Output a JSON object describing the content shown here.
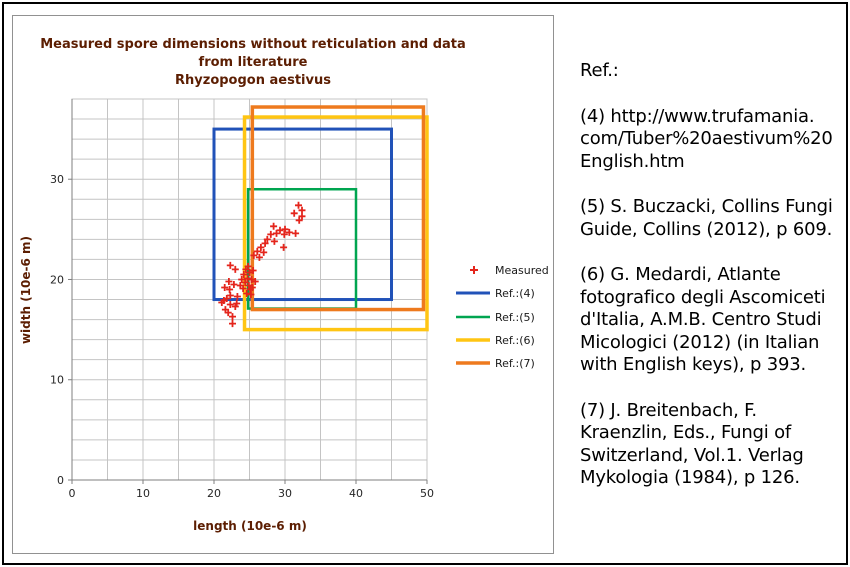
{
  "chart_data": {
    "type": "scatter",
    "title_lines": [
      "Measured spore dimensions without reticulation and data",
      "from literature",
      "Rhyzopogon aestivus"
    ],
    "title_color": "#5c1e02",
    "xlabel": "length (10e-6 m)",
    "ylabel": "width (10e-6 m)",
    "xlim": [
      0,
      50
    ],
    "ylim": [
      0,
      38
    ],
    "x_ticks": [
      0,
      10,
      20,
      30,
      40,
      50
    ],
    "y_ticks": [
      0,
      10,
      20,
      30
    ],
    "x_grid_step": 5,
    "y_grid_step": 2,
    "grid_color": "#c4c4c4",
    "axis_color": "#7f7f7f",
    "legend_position": "right",
    "series": [
      {
        "name": "Measured",
        "kind": "scatter",
        "marker": "plus",
        "color": "#e4251c",
        "points": [
          [
            21.1,
            17.7
          ],
          [
            21.4,
            17.9
          ],
          [
            21.6,
            17.0
          ],
          [
            21.8,
            18.1
          ],
          [
            22.0,
            16.7
          ],
          [
            22.3,
            17.5
          ],
          [
            22.6,
            15.6
          ],
          [
            22.6,
            16.3
          ],
          [
            23.0,
            17.3
          ],
          [
            23.2,
            17.6
          ],
          [
            21.5,
            19.2
          ],
          [
            22.1,
            19.8
          ],
          [
            22.2,
            19.0
          ],
          [
            22.8,
            19.5
          ],
          [
            22.3,
            18.4
          ],
          [
            23.3,
            18.3
          ],
          [
            22.3,
            21.4
          ],
          [
            23.0,
            21.0
          ],
          [
            23.7,
            19.4
          ],
          [
            23.9,
            20.0
          ],
          [
            24.1,
            19.1
          ],
          [
            24.2,
            20.5
          ],
          [
            24.4,
            19.7
          ],
          [
            24.5,
            21.0
          ],
          [
            24.6,
            18.6
          ],
          [
            24.7,
            20.1
          ],
          [
            24.9,
            19.4
          ],
          [
            25.0,
            20.7
          ],
          [
            25.1,
            19.0
          ],
          [
            25.3,
            20.0
          ],
          [
            25.4,
            19.2
          ],
          [
            25.5,
            20.9
          ],
          [
            25.8,
            19.8
          ],
          [
            24.8,
            21.3
          ],
          [
            25.2,
            18.5
          ],
          [
            25.6,
            22.4
          ],
          [
            26.1,
            22.8
          ],
          [
            26.4,
            22.2
          ],
          [
            26.6,
            23.2
          ],
          [
            27.0,
            22.7
          ],
          [
            27.2,
            23.6
          ],
          [
            27.5,
            24.0
          ],
          [
            28.0,
            24.5
          ],
          [
            28.4,
            25.3
          ],
          [
            28.5,
            23.8
          ],
          [
            28.8,
            24.6
          ],
          [
            29.3,
            24.9
          ],
          [
            29.8,
            23.2
          ],
          [
            29.9,
            24.5
          ],
          [
            30.0,
            25.0
          ],
          [
            30.6,
            24.7
          ],
          [
            31.5,
            24.6
          ],
          [
            31.3,
            26.6
          ],
          [
            31.9,
            27.4
          ],
          [
            32.4,
            26.9
          ],
          [
            32.4,
            26.3
          ],
          [
            32.0,
            25.9
          ]
        ]
      },
      {
        "name": "Ref.:(4)",
        "kind": "rect",
        "color": "#2152b8",
        "line_width": 3,
        "x": [
          20.0,
          45.0
        ],
        "y": [
          18.0,
          35.0
        ]
      },
      {
        "name": "Ref.:(5)",
        "kind": "rect",
        "color": "#00a550",
        "line_width": 2.5,
        "x": [
          24.8,
          40.0
        ],
        "y": [
          17.1,
          29.0
        ]
      },
      {
        "name": "Ref.:(6)",
        "kind": "rect",
        "color": "#ffc513",
        "line_width": 3.5,
        "x": [
          24.3,
          50.0
        ],
        "y": [
          15.0,
          36.2
        ]
      },
      {
        "name": "Ref.:(7)",
        "kind": "rect",
        "color": "#ee7a1e",
        "line_width": 3.5,
        "x": [
          25.4,
          49.5
        ],
        "y": [
          17.0,
          37.2
        ]
      }
    ]
  },
  "references": {
    "heading": "Ref.:",
    "items": [
      "(4) http://www.trufamania.\ncom/Tuber%20aestivum%20\nEnglish.htm",
      "(5) S. Buczacki, Collins Fungi\nGuide, Collins (2012), p 609.",
      "(6) G. Medardi, Atlante\nfotografico degli Ascomiceti\nd'Italia, A.M.B. Centro Studi\nMicologici (2012) (in Italian\nwith English keys), p 393.",
      "(7) J. Breitenbach, F.\nKraenzlin, Eds., Fungi of\nSwitzerland, Vol.1. Verlag\nMykologia (1984), p 126."
    ]
  }
}
